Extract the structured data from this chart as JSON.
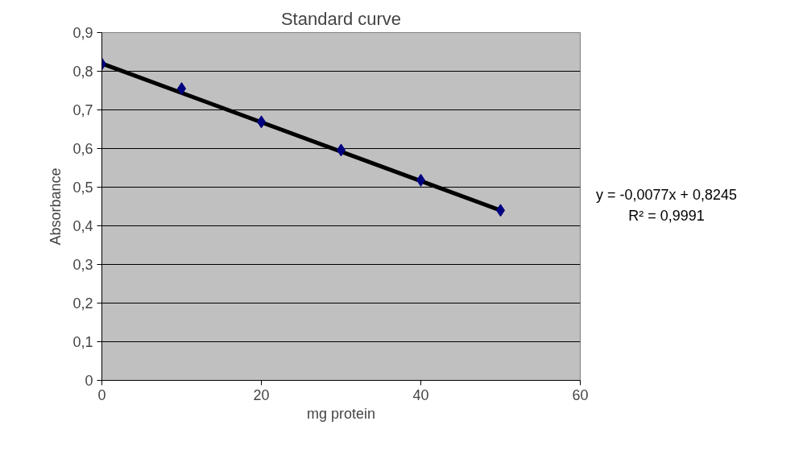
{
  "chart_data": {
    "type": "scatter",
    "title": "Standard curve",
    "xlabel": "mg protein",
    "ylabel": "Absorbance",
    "x": [
      0,
      10,
      20,
      30,
      40,
      50
    ],
    "series": [
      {
        "color": "#000080",
        "marker": "diamond",
        "values": [
          0.819,
          0.755,
          0.669,
          0.596,
          0.518,
          0.44
        ]
      },
      {
        "type": "line",
        "color": "#000000",
        "marker": "none",
        "line_style": "solid",
        "x": [
          0,
          50
        ],
        "values": [
          0.82,
          0.44
        ]
      }
    ],
    "xlim": [
      0,
      60
    ],
    "xticks": [
      0,
      20,
      40,
      60
    ],
    "ylim": [
      0,
      0.9
    ],
    "yticks": [
      {
        "value": 0,
        "label": "0"
      },
      {
        "value": 0.1,
        "label": "0,1"
      },
      {
        "value": 0.2,
        "label": "0,2"
      },
      {
        "value": 0.3,
        "label": "0,3"
      },
      {
        "value": 0.4,
        "label": "0,4"
      },
      {
        "value": 0.5,
        "label": "0,5"
      },
      {
        "value": 0.6,
        "label": "0,6"
      },
      {
        "value": 0.7,
        "label": "0,7"
      },
      {
        "value": 0.8,
        "label": "0,8"
      },
      {
        "value": 0.9,
        "label": "0,9"
      }
    ],
    "grid": "y",
    "annotations": [
      "y = -0,0077x + 0,8245",
      "R² = 0,9991"
    ]
  }
}
